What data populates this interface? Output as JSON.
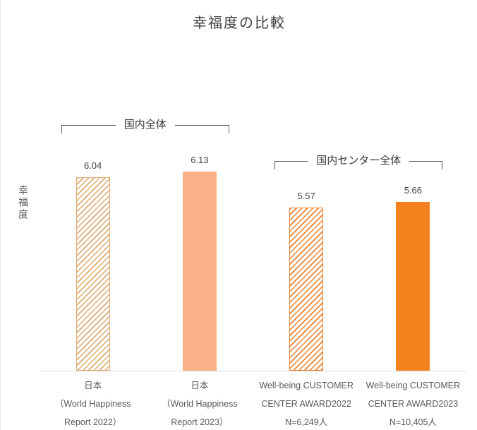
{
  "title": "幸福度の比較",
  "y_axis_label": "幸福度",
  "chart_data": {
    "type": "bar",
    "title": "幸福度の比較",
    "xlabel": "",
    "ylabel": "幸福度",
    "ylim": [
      3,
      7
    ],
    "grid": false,
    "legend": "none",
    "categories": [
      [
        "日本",
        "（World Happiness",
        "Report 2022）"
      ],
      [
        "日本",
        "（World Happiness",
        "Report 2023）"
      ],
      [
        "Well-being CUSTOMER",
        "CENTER AWARD2022",
        "N=6,249人"
      ],
      [
        "Well-being CUSTOMER",
        "CENTER AWARD2023",
        "N=10,405人"
      ]
    ],
    "values": [
      6.04,
      6.13,
      5.57,
      5.66
    ],
    "value_labels": [
      "6.04",
      "6.13",
      "5.57",
      "5.66"
    ],
    "bar_styles": [
      {
        "fill": "hatch",
        "color": "#dfa96f"
      },
      {
        "fill": "solid",
        "color": "#f9b287"
      },
      {
        "fill": "hatch",
        "color": "#ee7f2d"
      },
      {
        "fill": "solid",
        "color": "#f5801e"
      }
    ],
    "annotations": [
      {
        "label": "国内全体",
        "span": [
          0,
          1
        ]
      },
      {
        "label": "国内センター全体",
        "span": [
          2,
          3
        ]
      }
    ]
  }
}
